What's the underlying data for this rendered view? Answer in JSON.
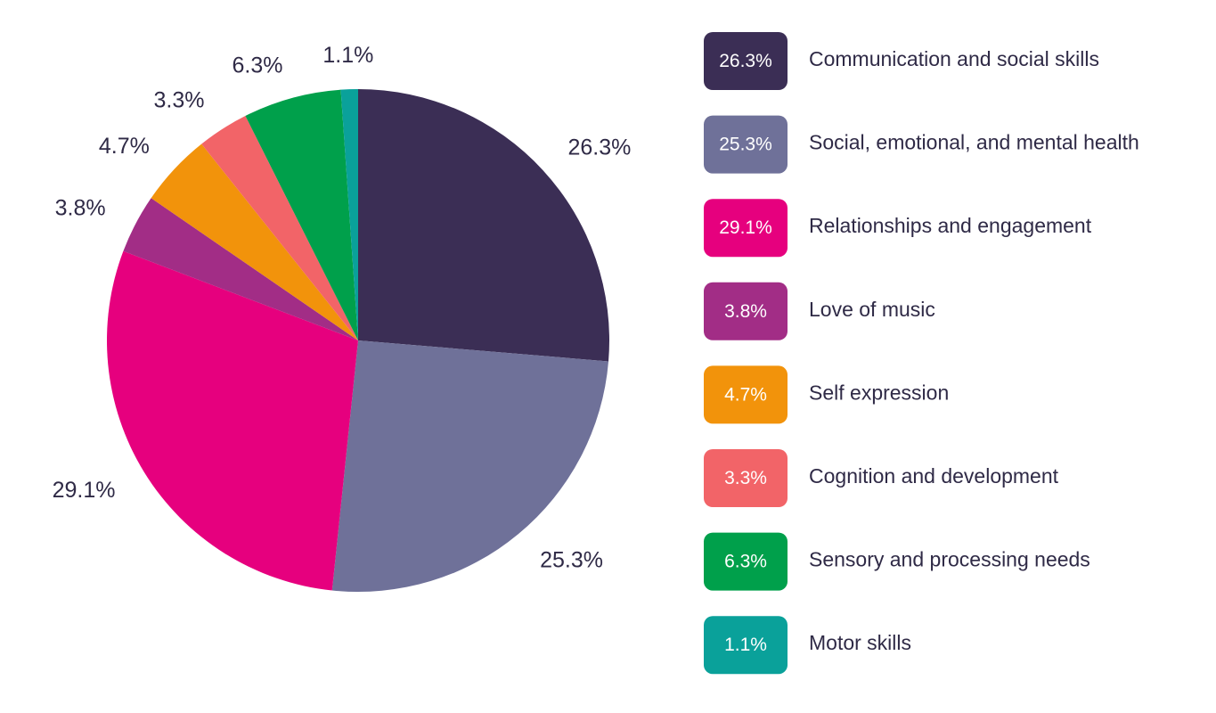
{
  "chart_data": {
    "type": "pie",
    "start_angle_deg": 90,
    "direction": "clockwise",
    "categories": [
      "Communication and social skills",
      "Social, emotional, and mental health",
      "Relationships and engagement",
      "Love of music",
      "Self expression",
      "Cognition and development",
      "Sensory and processing needs",
      "Motor skills"
    ],
    "values": [
      26.3,
      25.3,
      29.1,
      3.8,
      4.7,
      3.3,
      6.3,
      1.1
    ],
    "data_labels": [
      "26.3%",
      "25.3%",
      "29.1%",
      "3.8%",
      "4.7%",
      "3.3%",
      "6.3%",
      "1.1%"
    ],
    "colors": [
      "#3b2e55",
      "#6f7199",
      "#e6007e",
      "#a22d86",
      "#f2930b",
      "#f26468",
      "#00a04b",
      "#0aa19a"
    ],
    "legend_position": "right",
    "label_color": "#2f2a46"
  }
}
